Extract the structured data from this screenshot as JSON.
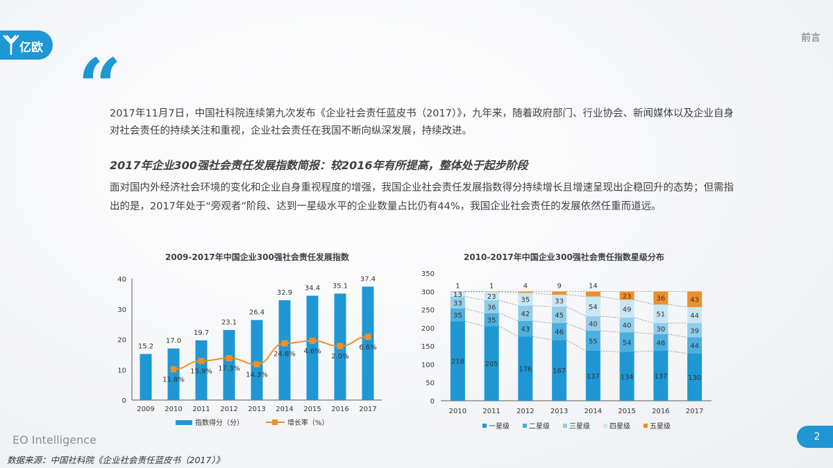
{
  "header": {
    "logo_text": "亿欧",
    "section_label": "前言",
    "quote_mark": "“"
  },
  "intro": {
    "text": "2017年11月7日，中国社科院连续第九次发布《企业社会责任蓝皮书（2017）》，九年来，随着政府部门、行业协会、新闻媒体以及企业自身对社会责任的持续关注和重视，企业社会责任在我国不断向纵深发展，持续改进。"
  },
  "subtitle": "2017年企业300强社会责任发展指数简报：较2016年有所提高，整体处于起步阶段",
  "body": {
    "text": "面对国内外经济社会环境的变化和企业自身重视程度的增强，我国企业社会责任发展指数得分持续增长且增速呈现出企稳回升的态势；但需指出的是，2017年处于“旁观者”阶段、达到一星级水平的企业数量占比仍有44%，我国企业社会责任的发展依然任重而道远。"
  },
  "colors": {
    "accent": "#1f97d4",
    "bar_blue": "#1f97d4",
    "line_orange": "#ed8f2a",
    "star1": "#1f97d4",
    "star2": "#4aaedf",
    "star3": "#92cdea",
    "star4": "#c9e6f4",
    "star5": "#ed8f2a"
  },
  "chart_data": [
    {
      "type": "bar",
      "title": "2009-2017年中国企业300强社会责任发展指数",
      "categories": [
        "2009",
        "2010",
        "2011",
        "2012",
        "2013",
        "2014",
        "2015",
        "2016",
        "2017"
      ],
      "series": [
        {
          "name": "指数得分（分）",
          "type": "bar",
          "values": [
            15.2,
            17.0,
            19.7,
            23.1,
            26.4,
            32.9,
            34.4,
            35.1,
            37.4
          ],
          "labels": [
            "15.2",
            "17.0",
            "19.7",
            "23.1",
            "26.4",
            "32.9",
            "34.4",
            "35.1",
            "37.4"
          ]
        },
        {
          "name": "增长率（%）",
          "type": "line",
          "values": [
            null,
            11.8,
            15.9,
            17.3,
            14.3,
            24.6,
            4.6,
            2.0,
            6.6
          ],
          "labels": [
            "",
            "11.8%",
            "15.9%",
            "17.3%",
            "14.3%",
            "24.6%",
            "4.6%",
            "2.0%",
            "6.6%"
          ]
        }
      ],
      "yticks": [
        "0",
        "10",
        "20",
        "30",
        "40"
      ],
      "ylim": [
        0,
        40
      ],
      "legend": "bottom"
    },
    {
      "type": "bar",
      "stacked": true,
      "title": "2010-2017年中国企业300强社会责任指数星级分布",
      "categories": [
        "2010",
        "2011",
        "2012",
        "2013",
        "2014",
        "2015",
        "2016",
        "2017"
      ],
      "series": [
        {
          "name": "一星级",
          "values": [
            218,
            205,
            176,
            167,
            137,
            134,
            137,
            130
          ]
        },
        {
          "name": "二星级",
          "values": [
            35,
            35,
            43,
            46,
            55,
            54,
            46,
            44
          ]
        },
        {
          "name": "三星级",
          "values": [
            33,
            36,
            42,
            45,
            40,
            40,
            30,
            39
          ]
        },
        {
          "name": "四星级",
          "values": [
            13,
            23,
            35,
            33,
            54,
            49,
            51,
            44
          ]
        },
        {
          "name": "五星级",
          "values": [
            1,
            1,
            4,
            9,
            14,
            23,
            36,
            43
          ]
        }
      ],
      "yticks": [
        "0",
        "50",
        "100",
        "150",
        "200",
        "250",
        "300",
        "350"
      ],
      "ylim": [
        0,
        350
      ],
      "legend": "bottom"
    }
  ],
  "footer": {
    "brand": "EO Intelligence",
    "source": "数据来源：中国社科院《企业社会责任蓝皮书（2017）》",
    "page_number": "2"
  }
}
